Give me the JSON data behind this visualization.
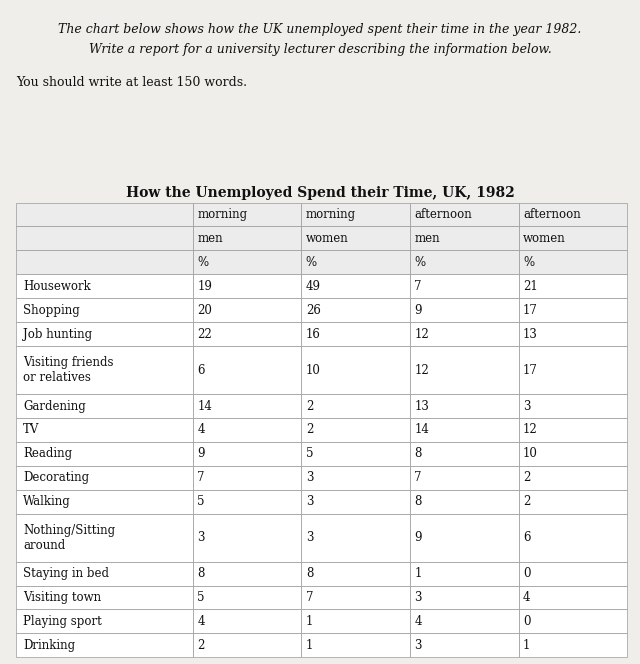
{
  "title": "How the Unemployed Spend their Time, UK, 1982",
  "header_text1": "The chart below shows how the UK unemployed spent their time in the year 1982.",
  "header_text2": "Write a report for a university lecturer describing the information below.",
  "subheader": "You should write at least 150 words.",
  "col_header_line1": [
    "",
    "morning",
    "morning",
    "afternoon",
    "afternoon"
  ],
  "col_header_line2": [
    "",
    "men",
    "women",
    "men",
    "women"
  ],
  "col_header_line3": [
    "",
    "%",
    "%",
    "%",
    "%"
  ],
  "rows": [
    [
      "Housework",
      "19",
      "49",
      "7",
      "21"
    ],
    [
      "Shopping",
      "20",
      "26",
      "9",
      "17"
    ],
    [
      "Job hunting",
      "22",
      "16",
      "12",
      "13"
    ],
    [
      "Visiting friends\nor relatives",
      "6",
      "10",
      "12",
      "17"
    ],
    [
      "Gardening",
      "14",
      "2",
      "13",
      "3"
    ],
    [
      "TV",
      "4",
      "2",
      "14",
      "12"
    ],
    [
      "Reading",
      "9",
      "5",
      "8",
      "10"
    ],
    [
      "Decorating",
      "7",
      "3",
      "7",
      "2"
    ],
    [
      "Walking",
      "5",
      "3",
      "8",
      "2"
    ],
    [
      "Nothing/Sitting\naround",
      "3",
      "3",
      "9",
      "6"
    ],
    [
      "Staying in bed",
      "8",
      "8",
      "1",
      "0"
    ],
    [
      "Visiting town",
      "5",
      "7",
      "3",
      "4"
    ],
    [
      "Playing sport",
      "4",
      "1",
      "4",
      "0"
    ],
    [
      "Drinking",
      "2",
      "1",
      "3",
      "1"
    ]
  ],
  "bg_color": "#f0eeea",
  "table_bg": "#ffffff",
  "title_fontsize": 10,
  "text_fontsize": 9,
  "cell_fontsize": 8.5
}
